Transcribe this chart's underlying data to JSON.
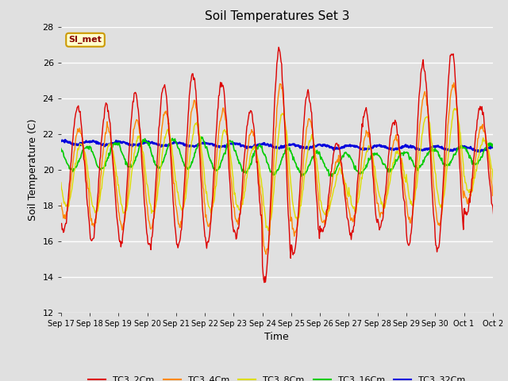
{
  "title": "Soil Temperatures Set 3",
  "xlabel": "Time",
  "ylabel": "Soil Temperature (C)",
  "ylim": [
    12,
    28
  ],
  "yticks": [
    12,
    14,
    16,
    18,
    20,
    22,
    24,
    26,
    28
  ],
  "bg_color": "#e0e0e0",
  "annotation_text": "SI_met",
  "annotation_bg": "#ffffcc",
  "annotation_border": "#cc9900",
  "colors": {
    "TC3_2Cm": "#dd0000",
    "TC3_4Cm": "#ff8800",
    "TC3_8Cm": "#dddd00",
    "TC3_16Cm": "#00cc00",
    "TC3_32Cm": "#0000dd"
  },
  "tick_labels": [
    "Sep 17",
    "Sep 18",
    "Sep 19",
    "Sep 20",
    "Sep 21",
    "Sep 22",
    "Sep 23",
    "Sep 24",
    "Sep 25",
    "Sep 26",
    "Sep 27",
    "Sep 28",
    "Sep 29",
    "Sep 30",
    "Oct 1",
    "Oct 2"
  ],
  "figsize": [
    6.4,
    4.8
  ],
  "dpi": 100
}
